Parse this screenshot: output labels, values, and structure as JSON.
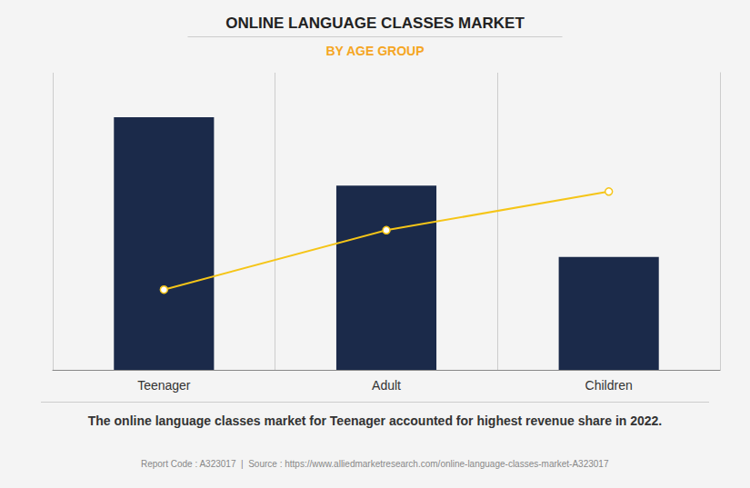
{
  "chart_data": {
    "type": "bar",
    "title": "ONLINE LANGUAGE CLASSES MARKET",
    "subtitle": "BY AGE GROUP",
    "categories": [
      "Teenager",
      "Adult",
      "Children"
    ],
    "series": [
      {
        "type": "bar",
        "color": "#1B2A4A",
        "values": [
          0.85,
          0.62,
          0.38
        ]
      },
      {
        "type": "line",
        "color": "#F5C518",
        "marker": "o",
        "values": [
          0.27,
          0.47,
          0.6
        ]
      }
    ],
    "ylim": [
      0,
      1.0
    ],
    "tick_labels": "x",
    "grid": true,
    "annotations": [
      "The online language classes market for Teenager accounted for highest revenue share in 2022.",
      "Report Code : A323017  |  Source : https://www.alliedmarketresearch.com/online-language-classes-market-A323017"
    ]
  }
}
